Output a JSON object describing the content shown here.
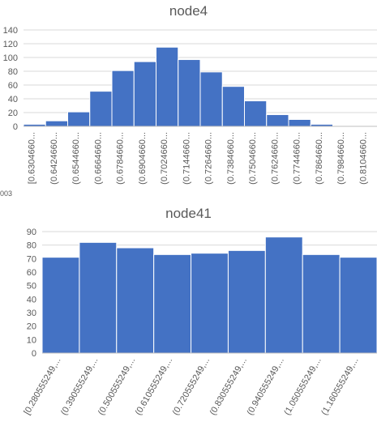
{
  "fragment_text": "003",
  "chart_data": [
    {
      "type": "bar",
      "title": "node4",
      "xlabel": "",
      "ylabel": "",
      "ylim": [
        0,
        140
      ],
      "yticks": [
        0,
        20,
        40,
        60,
        80,
        100,
        120,
        140
      ],
      "grid": true,
      "bar_color": "#4472C4",
      "grid_color": "#D9D9D9",
      "categories": [
        "[0.6304660...",
        "(0.6424660...",
        "(0.6544660...",
        "(0.6664660...",
        "(0.6784660...",
        "(0.6904660...",
        "(0.7024660...",
        "(0.7144660...",
        "(0.7264660...",
        "(0.7384660...",
        "(0.7504660...",
        "(0.7624660...",
        "(0.7744660...",
        "(0.7864660...",
        "(0.7984660...",
        "(0.8104660..."
      ],
      "values": [
        3,
        8,
        21,
        51,
        81,
        94,
        115,
        97,
        79,
        58,
        37,
        17,
        10,
        3,
        0,
        1
      ]
    },
    {
      "type": "bar",
      "title": "node41",
      "xlabel": "",
      "ylabel": "",
      "ylim": [
        0,
        90
      ],
      "yticks": [
        0,
        10,
        20,
        30,
        40,
        50,
        60,
        70,
        80,
        90
      ],
      "grid": true,
      "bar_color": "#4472C4",
      "grid_color": "#D9D9D9",
      "categories": [
        "[0.280555249,...",
        "(0.390555249,...",
        "(0.500555249,...",
        "(0.610555249,...",
        "(0.720555249,...",
        "(0.830555249,...",
        "(0.940555249,...",
        "(1.050555249,...",
        "(1.160555249,..."
      ],
      "values": [
        71,
        82,
        78,
        73,
        74,
        76,
        86,
        73,
        71
      ]
    }
  ]
}
